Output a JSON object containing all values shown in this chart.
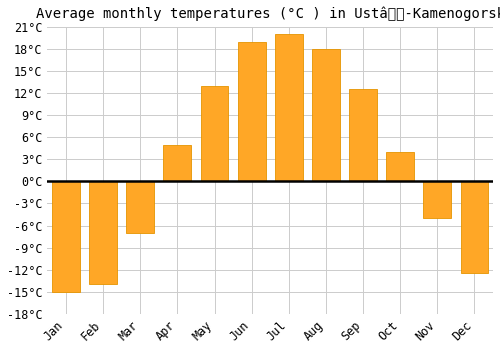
{
  "title": "Average monthly temperatures (°C ) in Ustâ-Kamenogorsk",
  "months": [
    "Jan",
    "Feb",
    "Mar",
    "Apr",
    "May",
    "Jun",
    "Jul",
    "Aug",
    "Sep",
    "Oct",
    "Nov",
    "Dec"
  ],
  "temperatures": [
    -15,
    -14,
    -7,
    5,
    13,
    19,
    20,
    18,
    12.5,
    4,
    -5,
    -12.5
  ],
  "bar_color": "#FFA726",
  "bar_edge_color": "#E59400",
  "background_color": "#FFFFFF",
  "grid_color": "#CCCCCC",
  "ylim": [
    -18,
    21
  ],
  "yticks": [
    -18,
    -15,
    -12,
    -9,
    -6,
    -3,
    0,
    3,
    6,
    9,
    12,
    15,
    18,
    21
  ],
  "zero_line_color": "#000000",
  "title_fontsize": 10,
  "tick_fontsize": 8.5,
  "font_family": "monospace"
}
